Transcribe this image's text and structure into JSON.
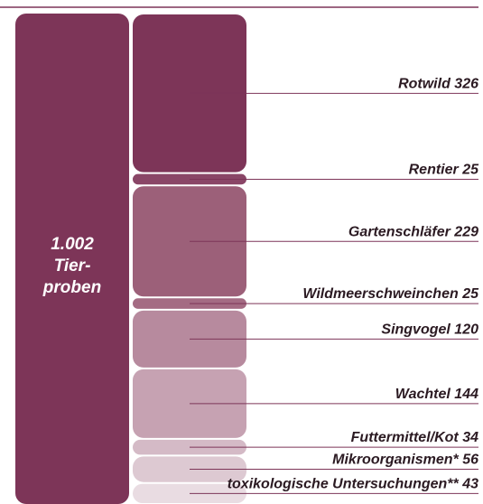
{
  "chart_data": {
    "type": "stacked_column",
    "total": {
      "value": 1002,
      "label": "1.002"
    },
    "total_caption": [
      "Tier-",
      "proben"
    ],
    "total_color": "#7d3558",
    "categories": [
      "Rotwild",
      "Rentier",
      "Gartenschläfer",
      "Wildmeerschweinchen",
      "Singvogel",
      "Wachtel",
      "Futtermittel/Kot",
      "Mikroorganismen*",
      "toxikologische Untersuchungen**"
    ],
    "values": [
      326,
      25,
      229,
      25,
      120,
      144,
      34,
      56,
      43
    ],
    "colors": [
      "#7d3558",
      "#8a4667",
      "#9c6079",
      "#a46b83",
      "#b78a9e",
      "#c6a2b2",
      "#d4bac6",
      "#ddc9d2",
      "#e9dce2"
    ],
    "line_color": "#7d3558"
  }
}
